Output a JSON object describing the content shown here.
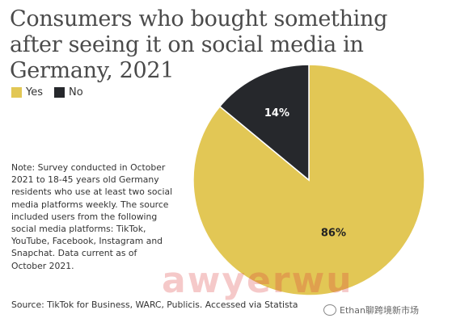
{
  "title": "Consumers who bought something after seeing it on social media in Germany, 2021",
  "legend": [
    {
      "label": "Yes",
      "color": "#e2c755"
    },
    {
      "label": "No",
      "color": "#26282c"
    }
  ],
  "note": "Note: Survey conducted in October 2021 to 18-45 years old Germany residents who use at least two social media platforms weekly. The source included users from the following social media platforms: TikTok, YouTube, Facebook, Instagram and Snapchat. Data current as of October 2021.",
  "source": "Source: TikTok for Business, WARC, Publicis. Accessed via Statista",
  "watermark": "awyerwu",
  "wechat_text": "Ethan聊跨境新市场",
  "chart_data": {
    "type": "pie",
    "title": "Consumers who bought something after seeing it on social media in Germany, 2021",
    "categories": [
      "Yes",
      "No"
    ],
    "values": [
      86,
      14
    ],
    "labels": [
      "86%",
      "14%"
    ],
    "colors": [
      "#e2c755",
      "#26282c"
    ],
    "label_colors": [
      "#222222",
      "#ffffff"
    ],
    "legend_position": "top-left"
  }
}
